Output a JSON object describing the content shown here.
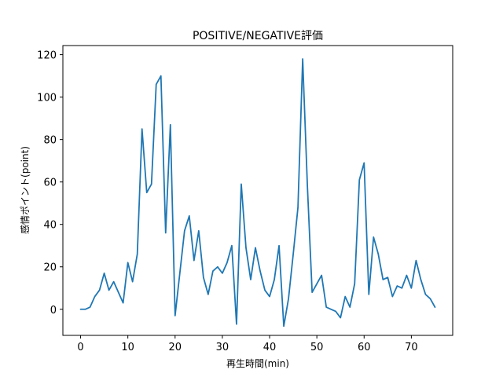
{
  "chart_data": {
    "type": "line",
    "title": "POSITIVE/NEGATIVE評価",
    "xlabel": "再生時間(min)",
    "ylabel": "感情ポイント(point)",
    "xlim": [
      -3.75,
      78.75
    ],
    "ylim": [
      -12.3,
      124.3
    ],
    "xticks": [
      0,
      10,
      20,
      30,
      40,
      50,
      60,
      70
    ],
    "yticks": [
      0,
      20,
      40,
      60,
      80,
      100,
      120
    ],
    "grid": false,
    "series": [
      {
        "color": "#1f77b4",
        "x": [
          0,
          1,
          2,
          3,
          4,
          5,
          6,
          7,
          8,
          9,
          10,
          11,
          12,
          13,
          14,
          15,
          16,
          17,
          18,
          19,
          20,
          21,
          22,
          23,
          24,
          25,
          26,
          27,
          28,
          29,
          30,
          31,
          32,
          33,
          34,
          35,
          36,
          37,
          38,
          39,
          40,
          41,
          42,
          43,
          44,
          45,
          46,
          47,
          48,
          49,
          50,
          51,
          52,
          53,
          54,
          55,
          56,
          57,
          58,
          59,
          60,
          61,
          62,
          63,
          64,
          65,
          66,
          67,
          68,
          69,
          70,
          71,
          72,
          73,
          74,
          75
        ],
        "y": [
          0,
          0,
          1,
          6,
          9,
          17,
          9,
          13,
          8,
          3,
          22,
          13,
          26,
          85,
          55,
          59,
          106,
          110,
          36,
          87,
          -3,
          17,
          37,
          44,
          23,
          37,
          15,
          7,
          18,
          20,
          17,
          22,
          30,
          -7,
          59,
          29,
          14,
          29,
          18,
          9,
          6,
          14,
          30,
          -8,
          5,
          26,
          48,
          118,
          58,
          8,
          12,
          16,
          1,
          0,
          -1,
          -4,
          6,
          1,
          12,
          61,
          69,
          7,
          34,
          26,
          14,
          15,
          6,
          11,
          10,
          16,
          10,
          23,
          14,
          7,
          5,
          1
        ]
      }
    ]
  }
}
